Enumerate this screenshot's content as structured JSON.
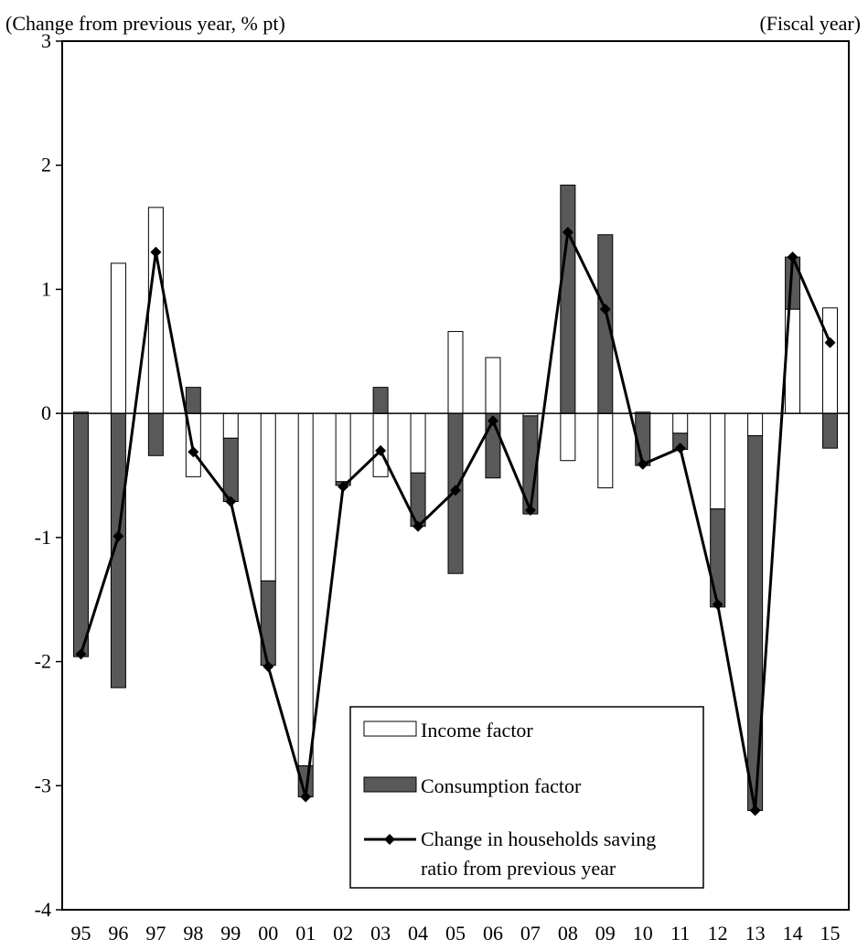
{
  "chart_data": {
    "type": "bar",
    "ylabel": "(Change from previous year, % pt)",
    "xlabel": "(Fiscal year)",
    "ylim": [
      -4,
      3
    ],
    "yticks": [
      "3",
      "2",
      "1",
      "0",
      "-1",
      "-2",
      "-3",
      "-4"
    ],
    "categories": [
      "95",
      "96",
      "97",
      "98",
      "99",
      "00",
      "01",
      "02",
      "03",
      "04",
      "05",
      "06",
      "07",
      "08",
      "09",
      "10",
      "11",
      "12",
      "13",
      "14",
      "15"
    ],
    "series": [
      {
        "name": "Income factor",
        "kind": "bar",
        "color": "#ffffff",
        "values": [
          0.01,
          1.21,
          1.66,
          -0.51,
          -0.2,
          -1.35,
          -2.84,
          -0.55,
          -0.51,
          -0.48,
          0.66,
          0.45,
          -0.02,
          -0.38,
          -0.6,
          0.01,
          -0.16,
          -0.77,
          -0.18,
          0.84,
          0.85
        ]
      },
      {
        "name": "Consumption factor",
        "kind": "bar",
        "color": "#595959",
        "values": [
          -1.96,
          -2.21,
          -0.34,
          0.21,
          -0.51,
          -0.68,
          -0.25,
          -0.03,
          0.21,
          -0.43,
          -1.29,
          -0.52,
          -0.79,
          1.84,
          1.44,
          -0.42,
          -0.13,
          -0.79,
          -3.02,
          0.42,
          -0.28
        ]
      },
      {
        "name": "Change in households saving ratio from previous year",
        "kind": "line",
        "color": "#000000",
        "values": [
          -1.94,
          -0.99,
          1.3,
          -0.31,
          -0.71,
          -2.04,
          -3.09,
          -0.59,
          -0.3,
          -0.91,
          -0.62,
          -0.06,
          -0.78,
          1.46,
          0.84,
          -0.41,
          -0.28,
          -1.54,
          -3.2,
          1.26,
          0.57
        ]
      }
    ],
    "legend": {
      "placement": "bottom-right",
      "entries": [
        "Income factor",
        "Consumption factor",
        "Change in households saving ratio from previous year"
      ],
      "line_entry_lines": [
        "Change in households saving",
        "ratio from previous year"
      ]
    },
    "grid": false
  }
}
